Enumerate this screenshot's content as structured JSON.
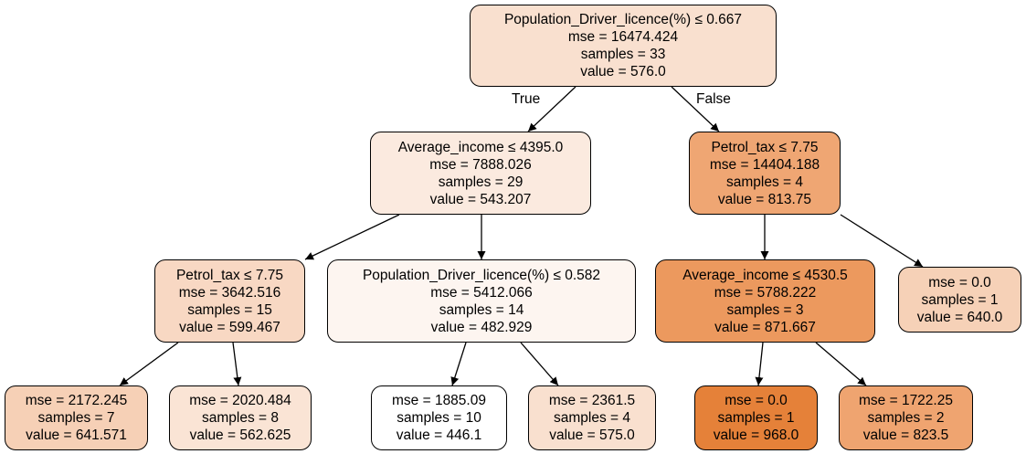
{
  "edge_labels": {
    "true": "True",
    "false": "False"
  },
  "nodes": {
    "root": {
      "lines": [
        "Population_Driver_licence(%) ≤ 0.667",
        "mse = 16474.424",
        "samples = 33",
        "value = 576.0"
      ],
      "color": "#f9e0cf"
    },
    "l1a": {
      "lines": [
        "Average_income ≤ 4395.0",
        "mse = 7888.026",
        "samples = 29",
        "value = 543.207"
      ],
      "color": "#fbeadf"
    },
    "l1b": {
      "lines": [
        "Petrol_tax ≤ 7.75",
        "mse = 14404.188",
        "samples = 4",
        "value = 813.75"
      ],
      "color": "#efa673"
    },
    "l2a": {
      "lines": [
        "Petrol_tax ≤ 7.75",
        "mse = 3642.516",
        "samples = 15",
        "value = 599.467"
      ],
      "color": "#f8d8c3"
    },
    "l2b": {
      "lines": [
        "Population_Driver_licence(%) ≤ 0.582",
        "mse = 5412.066",
        "samples = 14",
        "value = 482.929"
      ],
      "color": "#fdf5f0"
    },
    "l2c": {
      "lines": [
        "Average_income ≤ 4530.5",
        "mse = 5788.222",
        "samples = 3",
        "value = 871.667"
      ],
      "color": "#ec995e"
    },
    "l2d": {
      "lines": [
        "mse = 0.0",
        "samples = 1",
        "value = 640.0"
      ],
      "color": "#f6d1b7"
    },
    "l3a": {
      "lines": [
        "mse = 2172.245",
        "samples = 7",
        "value = 641.571"
      ],
      "color": "#f6d0b6"
    },
    "l3b": {
      "lines": [
        "mse = 2020.484",
        "samples = 8",
        "value = 562.625"
      ],
      "color": "#fae4d5"
    },
    "l3c": {
      "lines": [
        "mse = 1885.09",
        "samples = 10",
        "value = 446.1"
      ],
      "color": "#ffffff"
    },
    "l3d": {
      "lines": [
        "mse = 2361.5",
        "samples = 4",
        "value = 575.0"
      ],
      "color": "#f9e0cf"
    },
    "l3e": {
      "lines": [
        "mse = 0.0",
        "samples = 1",
        "value = 968.0"
      ],
      "color": "#e58139"
    },
    "l3f": {
      "lines": [
        "mse = 1722.25",
        "samples = 2",
        "value = 823.5"
      ],
      "color": "#efa470"
    }
  }
}
